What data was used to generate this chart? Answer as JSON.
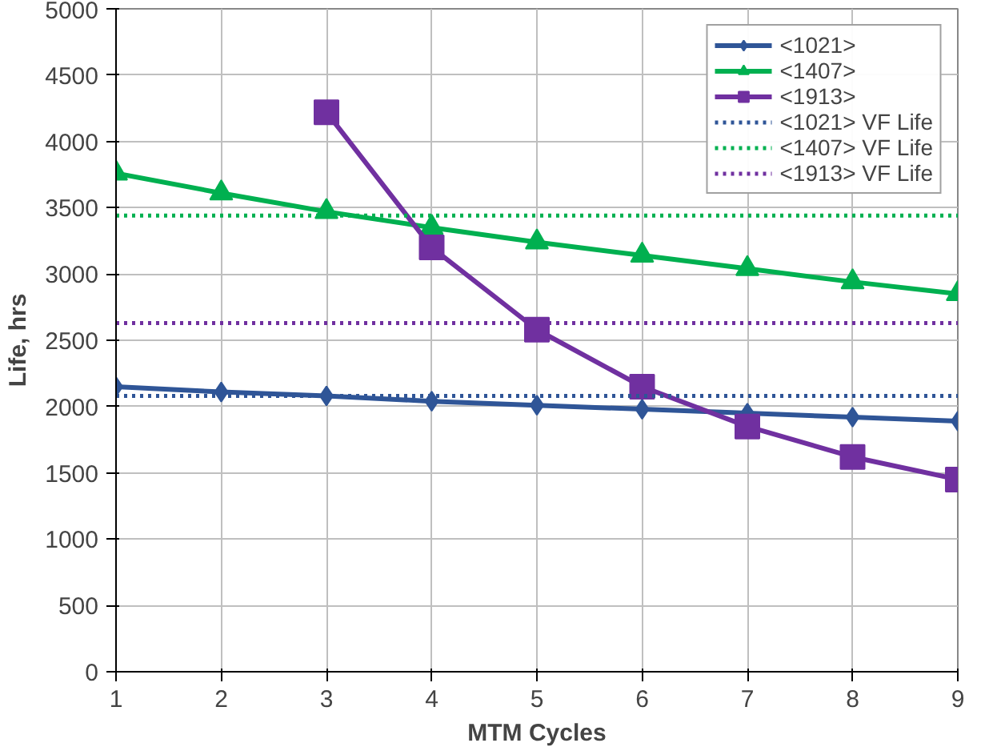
{
  "chart_data": {
    "type": "line",
    "xlabel": "MTM Cycles",
    "ylabel": "Life, hrs",
    "x": [
      1,
      2,
      3,
      4,
      5,
      6,
      7,
      8,
      9
    ],
    "xlim": [
      1,
      9
    ],
    "xticks": [
      1,
      2,
      3,
      4,
      5,
      6,
      7,
      8,
      9
    ],
    "ylim": [
      0,
      5000
    ],
    "yticks": [
      0,
      500,
      1000,
      1500,
      2000,
      2500,
      3000,
      3500,
      4000,
      4500,
      5000
    ],
    "grid": true,
    "legend": "top right",
    "line_style": "solid",
    "series": [
      {
        "name": "<1021>",
        "color": "#2f5597",
        "marker": "diamond",
        "values": [
          2150,
          2110,
          2080,
          2040,
          2010,
          1980,
          1950,
          1920,
          1890
        ]
      },
      {
        "name": "<1407>",
        "color": "#00b050",
        "marker": "triangle",
        "values": [
          3760,
          3610,
          3470,
          3350,
          3240,
          3140,
          3040,
          2940,
          2850
        ]
      },
      {
        "name": "<1913>",
        "color": "#7030a0",
        "marker": "square",
        "values": [
          null,
          null,
          4220,
          3200,
          2580,
          2150,
          1850,
          1620,
          1450
        ]
      },
      {
        "name": "<1021> VF Life",
        "color": "#2f5597",
        "marker": "none",
        "line_style": "dotted",
        "values": [
          2080,
          2080,
          2080,
          2080,
          2080,
          2080,
          2080,
          2080,
          2080
        ]
      },
      {
        "name": "<1407> VF Life",
        "color": "#00b050",
        "marker": "none",
        "line_style": "dotted",
        "values": [
          3440,
          3440,
          3440,
          3440,
          3440,
          3440,
          3440,
          3440,
          3440
        ]
      },
      {
        "name": "<1913> VF Life",
        "color": "#7030a0",
        "marker": "none",
        "line_style": "dotted",
        "values": [
          2630,
          2630,
          2630,
          2630,
          2630,
          2630,
          2630,
          2630,
          2630
        ]
      }
    ]
  }
}
